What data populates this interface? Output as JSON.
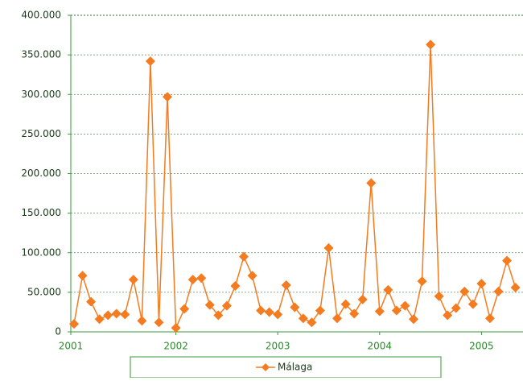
{
  "chart_data": {
    "type": "line",
    "categories": [
      "2001",
      null,
      null,
      null,
      null,
      null,
      null,
      null,
      null,
      null,
      null,
      null,
      "2002",
      null,
      null,
      null,
      null,
      null,
      null,
      null,
      null,
      null,
      null,
      null,
      "2003",
      null,
      null,
      null,
      null,
      null,
      null,
      null,
      null,
      null,
      null,
      null,
      "2004",
      null,
      null,
      null,
      null,
      null,
      null,
      null,
      null,
      null,
      null,
      null,
      "2005",
      null,
      null,
      null,
      null
    ],
    "series": [
      {
        "name": "Málaga",
        "color": "#f47b20",
        "values": [
          10000,
          71000,
          38000,
          16000,
          21000,
          23000,
          22000,
          66000,
          14000,
          342000,
          12000,
          297000,
          5000,
          29000,
          66000,
          68000,
          34000,
          21000,
          33000,
          58000,
          95000,
          71000,
          27000,
          25000,
          22000,
          59000,
          31000,
          17000,
          12000,
          27000,
          106000,
          17000,
          35000,
          23000,
          41000,
          188000,
          26000,
          53000,
          27000,
          33000,
          16000,
          64000,
          363000,
          45000,
          21000,
          30000,
          51000,
          35000,
          61000,
          17000,
          51000,
          90000,
          56000
        ]
      }
    ],
    "ylim": [
      0,
      400000
    ],
    "yticks": [
      0,
      {
        "value": 50000,
        "label": "50.000"
      },
      {
        "value": 100000,
        "label": "100.000"
      },
      {
        "value": 150000,
        "label": "150.000"
      },
      {
        "value": 200000,
        "label": "200.000"
      },
      {
        "value": 250000,
        "label": "250.000"
      },
      {
        "value": 300000,
        "label": "300.000"
      },
      {
        "value": 350000,
        "label": "350.000"
      },
      {
        "value": 400000,
        "label": "400.000"
      }
    ],
    "grid": true
  }
}
